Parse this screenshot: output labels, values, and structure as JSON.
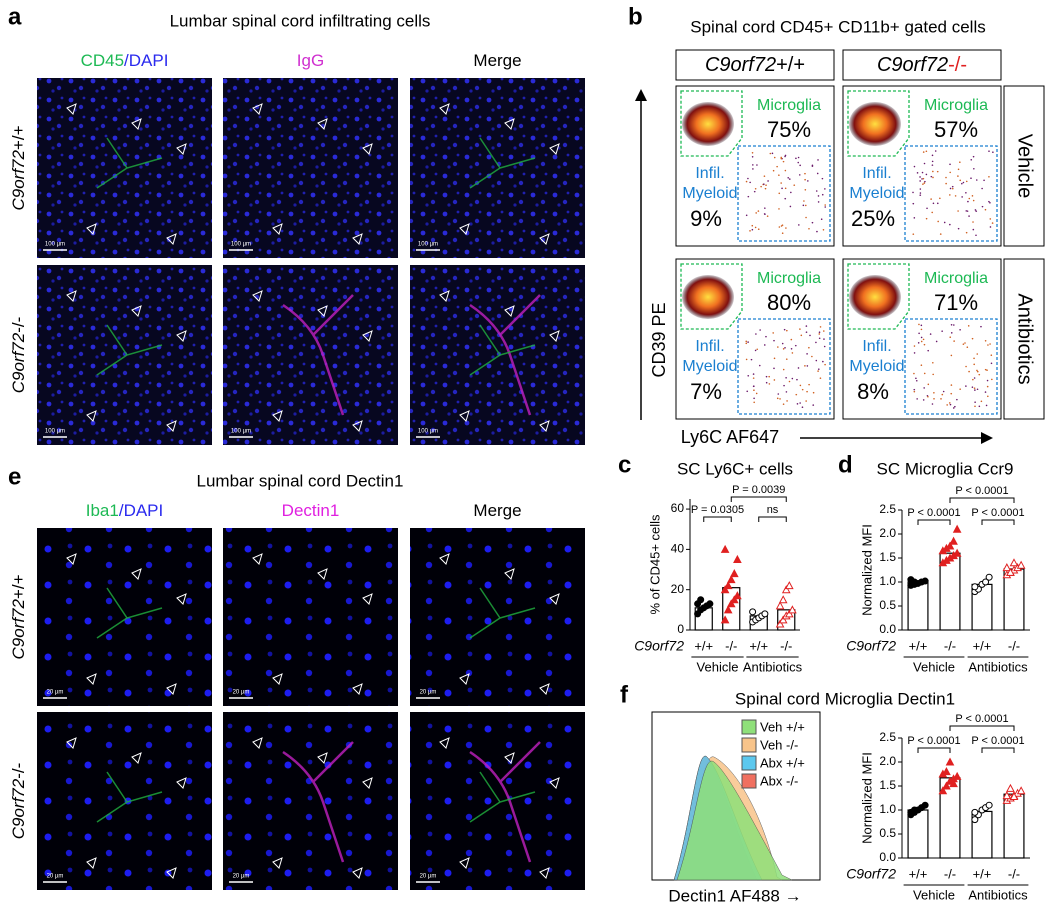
{
  "a": {
    "letter": "a",
    "title": "Lumbar spinal cord infiltrating cells",
    "columns": [
      {
        "parts": [
          "CD45",
          "/DAPI"
        ],
        "colors": [
          "#1db954",
          "#2a2aee"
        ]
      },
      {
        "parts": [
          "IgG"
        ],
        "colors": [
          "#d030d0"
        ]
      },
      {
        "parts": [
          "Merge"
        ],
        "colors": [
          "#000000"
        ]
      }
    ],
    "rows": [
      {
        "gene": "C9orf72",
        "genotype": "+/+"
      },
      {
        "gene": "C9orf72",
        "genotype": "-/-"
      }
    ],
    "scale_bar": "100 µm"
  },
  "e": {
    "letter": "e",
    "title": "Lumbar spinal cord Dectin1",
    "columns": [
      {
        "parts": [
          "Iba1",
          "/DAPI"
        ],
        "colors": [
          "#1db954",
          "#2a2aee"
        ]
      },
      {
        "parts": [
          "Dectin1"
        ],
        "colors": [
          "#e020e0"
        ]
      },
      {
        "parts": [
          "Merge"
        ],
        "colors": [
          "#000000"
        ]
      }
    ],
    "rows": [
      {
        "gene": "C9orf72",
        "genotype": "+/+"
      },
      {
        "gene": "C9orf72",
        "genotype": "-/-"
      }
    ],
    "scale_bar": "20 µm"
  },
  "b": {
    "letter": "b",
    "title": "Spinal cord CD45+ CD11b+ gated cells",
    "columns": [
      {
        "gene": "C9orf72",
        "genotype": "+/+",
        "color": "#000000"
      },
      {
        "gene": "C9orf72",
        "genotype": "-/-",
        "color": "#e02020"
      }
    ],
    "rows": [
      "Vehicle",
      "Antibiotics"
    ],
    "gate_microglia": "Microglia",
    "gate_infil": [
      "Infil.",
      "Myeloid"
    ],
    "microglia": {
      "values": [
        75,
        57,
        80,
        71
      ],
      "value_labels": [
        "75%",
        "57%",
        "80%",
        "71%"
      ],
      "color": "#1db954"
    },
    "infil": {
      "values": [
        9,
        25,
        7,
        8
      ],
      "value_labels": [
        "9%",
        "25%",
        "7%",
        "8%"
      ],
      "color": "#1a7fd0"
    },
    "y_label": "CD39 PE",
    "x_label": "Ly6C AF647"
  },
  "c": {
    "letter": "c",
    "title": "SC Ly6C+ cells",
    "y_label": "% of CD45+ cells",
    "ylim": [
      0,
      65
    ],
    "yticks": [
      0,
      20,
      40,
      60
    ],
    "gene": "C9orf72",
    "genotypes": [
      "+/+",
      "-/-",
      "+/+",
      "-/-"
    ],
    "treatments": [
      "Vehicle",
      "Antibiotics"
    ],
    "groups": [
      {
        "mean": 11,
        "points": [
          8,
          10,
          11,
          12,
          13,
          13,
          15
        ],
        "color": "#000000",
        "marker": "circle",
        "filled": true
      },
      {
        "mean": 21,
        "points": [
          5,
          10,
          13,
          15,
          17,
          20,
          22,
          25,
          28,
          35,
          40
        ],
        "color": "#e02020",
        "marker": "triangle",
        "filled": true
      },
      {
        "mean": 7,
        "points": [
          4,
          5,
          6,
          7,
          8,
          9
        ],
        "color": "#000000",
        "marker": "circle",
        "filled": false
      },
      {
        "mean": 10,
        "points": [
          3,
          5,
          7,
          8,
          10,
          12,
          15,
          20,
          22
        ],
        "color": "#e02020",
        "marker": "triangle",
        "filled": false
      }
    ],
    "comparisons": [
      "P = 0.0305",
      "ns",
      "P = 0.0039"
    ]
  },
  "d": {
    "letter": "d",
    "title": "SC Microglia Ccr9",
    "y_label": "Normalized MFI",
    "ylim": [
      0,
      2.5
    ],
    "yticks": [
      {
        "value": 0,
        "label": "0.0"
      },
      0.5,
      {
        "value": 1,
        "label": "1.0"
      },
      1.5,
      {
        "value": 2,
        "label": "2.0"
      },
      2.5
    ],
    "gene": "C9orf72",
    "genotypes": [
      "+/+",
      "-/-",
      "+/+",
      "-/-"
    ],
    "treatments": [
      "Vehicle",
      "Antibiotics"
    ],
    "groups": [
      {
        "mean": 1.0,
        "points": [
          0.93,
          0.95,
          0.97,
          1.0,
          1.02,
          1.05,
          1.0
        ],
        "color": "#000000",
        "marker": "circle",
        "filled": true
      },
      {
        "mean": 1.6,
        "points": [
          1.4,
          1.45,
          1.5,
          1.55,
          1.6,
          1.65,
          1.7,
          1.75,
          1.85,
          2.1
        ],
        "color": "#e02020",
        "marker": "triangle",
        "filled": true
      },
      {
        "mean": 0.95,
        "points": [
          0.8,
          0.85,
          0.95,
          1.0,
          1.1,
          0.9
        ],
        "color": "#000000",
        "marker": "circle",
        "filled": false
      },
      {
        "mean": 1.27,
        "points": [
          1.15,
          1.2,
          1.25,
          1.3,
          1.35,
          1.3,
          1.2,
          1.4
        ],
        "color": "#e02020",
        "marker": "triangle",
        "filled": false
      }
    ],
    "comparisons": [
      "P < 0.0001",
      "P < 0.0001",
      "P < 0.0001"
    ]
  },
  "f": {
    "letter": "f",
    "title": "Spinal cord Microglia Dectin1",
    "hist_legend": [
      {
        "name": "Veh +/+",
        "color": "#8fe07a"
      },
      {
        "name": "Veh -/-",
        "color": "#f8c48a"
      },
      {
        "name": "Abx +/+",
        "color": "#5cc8ee"
      },
      {
        "name": "Abx -/-",
        "color": "#f07060"
      }
    ],
    "hist_x_label": "Dectin1 AF488 →",
    "y_label": "Normalized MFI",
    "ylim": [
      0,
      2.5
    ],
    "yticks": [
      {
        "value": 0,
        "label": "0.0"
      },
      0.5,
      {
        "value": 1,
        "label": "1.0"
      },
      1.5,
      {
        "value": 2,
        "label": "2.0"
      },
      2.5
    ],
    "gene": "C9orf72",
    "genotypes": [
      "+/+",
      "-/-",
      "+/+",
      "-/-"
    ],
    "treatments": [
      "Vehicle",
      "Antibiotics"
    ],
    "groups": [
      {
        "mean": 1.0,
        "points": [
          0.9,
          0.95,
          1.0,
          1.05,
          1.1,
          0.95,
          1.0
        ],
        "color": "#000000",
        "marker": "circle",
        "filled": true
      },
      {
        "mean": 1.67,
        "points": [
          1.4,
          1.5,
          1.6,
          1.65,
          1.7,
          1.75,
          1.8,
          2.0,
          1.55
        ],
        "color": "#e02020",
        "marker": "triangle",
        "filled": true
      },
      {
        "mean": 0.97,
        "points": [
          0.8,
          0.9,
          1.0,
          1.05,
          1.1,
          0.95
        ],
        "color": "#000000",
        "marker": "circle",
        "filled": false
      },
      {
        "mean": 1.33,
        "points": [
          1.2,
          1.25,
          1.3,
          1.35,
          1.4,
          1.3,
          1.45,
          1.28
        ],
        "color": "#e02020",
        "marker": "triangle",
        "filled": false
      }
    ],
    "comparisons": [
      "P < 0.0001",
      "P < 0.0001",
      "P < 0.0001"
    ]
  }
}
